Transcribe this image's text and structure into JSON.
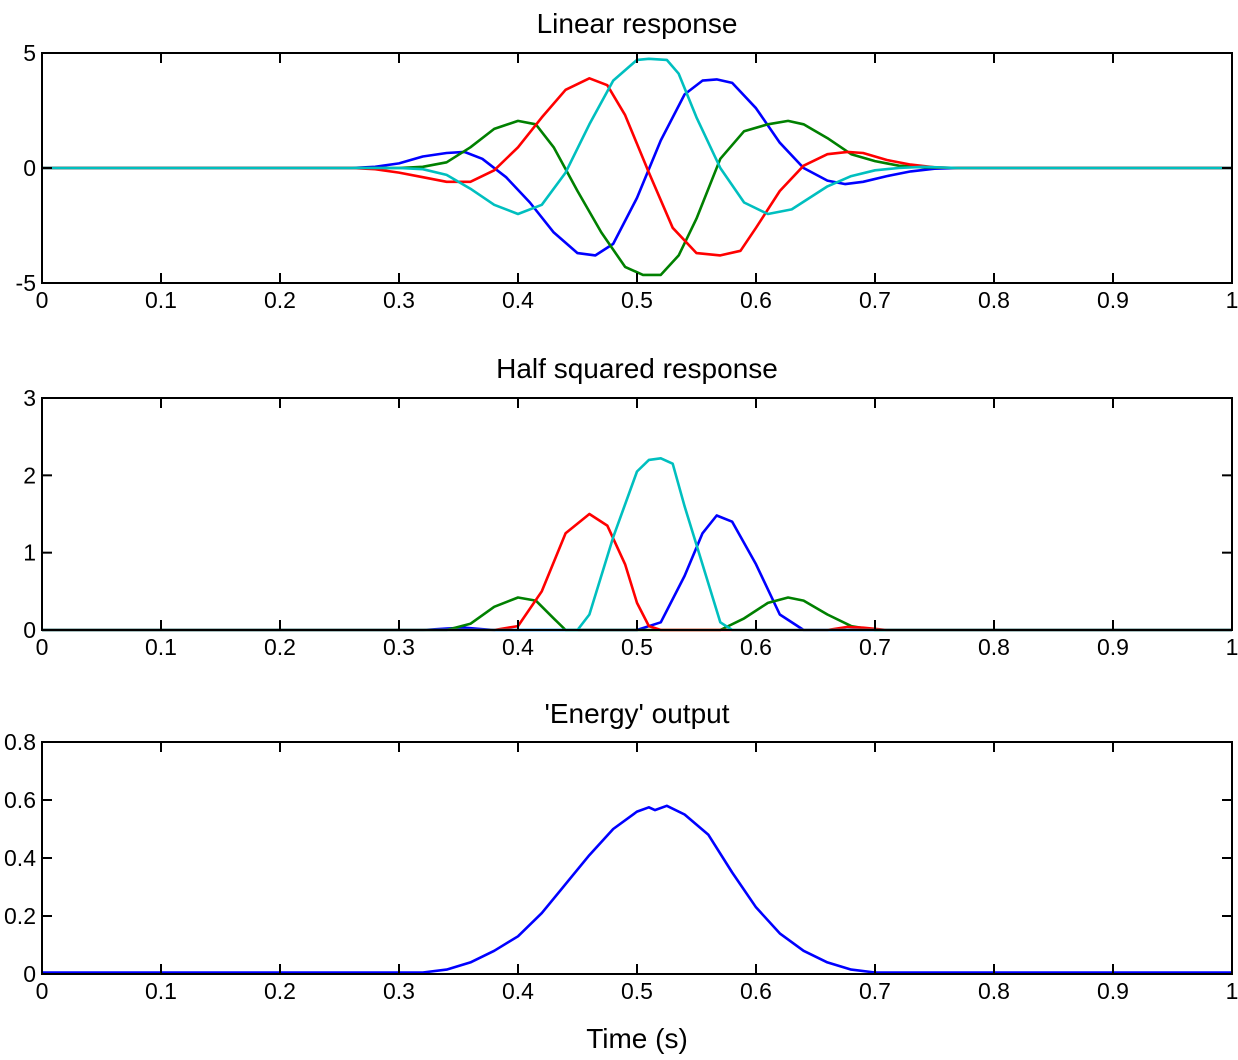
{
  "figure": {
    "xlabel": "Time (s)"
  },
  "chart_data": [
    {
      "type": "line",
      "title": "Linear response",
      "xlabel": "",
      "ylabel": "",
      "xlim": [
        0,
        1
      ],
      "ylim": [
        -5,
        5
      ],
      "xticks": [
        0,
        0.1,
        0.2,
        0.3,
        0.4,
        0.5,
        0.6,
        0.7,
        0.8,
        0.9,
        1
      ],
      "xtick_labels": [
        "0",
        "0.1",
        "0.2",
        "0.3",
        "0.4",
        "0.5",
        "0.6",
        "0.7",
        "0.8",
        "0.9",
        "1"
      ],
      "yticks": [
        -5,
        0,
        5
      ],
      "ytick_labels": [
        "-5",
        "0",
        "5"
      ],
      "grid": false,
      "series": [
        {
          "color": "#0000ff",
          "x": [
            0,
            0.26,
            0.28,
            0.3,
            0.32,
            0.34,
            0.355,
            0.37,
            0.39,
            0.41,
            0.43,
            0.45,
            0.465,
            0.48,
            0.5,
            0.52,
            0.54,
            0.555,
            0.567,
            0.58,
            0.6,
            0.62,
            0.64,
            0.66,
            0.675,
            0.69,
            0.71,
            0.73,
            0.75,
            0.77,
            1
          ],
          "y": [
            0,
            0,
            0.05,
            0.2,
            0.5,
            0.65,
            0.7,
            0.4,
            -0.4,
            -1.5,
            -2.8,
            -3.7,
            -3.8,
            -3.3,
            -1.3,
            1.2,
            3.2,
            3.8,
            3.85,
            3.7,
            2.6,
            1.1,
            0,
            -0.55,
            -0.7,
            -0.6,
            -0.35,
            -0.15,
            -0.03,
            0,
            0
          ]
        },
        {
          "color": "#008000",
          "x": [
            0,
            0.3,
            0.32,
            0.34,
            0.36,
            0.38,
            0.4,
            0.415,
            0.43,
            0.45,
            0.47,
            0.49,
            0.505,
            0.52,
            0.535,
            0.55,
            0.57,
            0.59,
            0.61,
            0.627,
            0.64,
            0.66,
            0.68,
            0.7,
            0.72,
            0.74,
            0.77,
            1
          ],
          "y": [
            0,
            0,
            0.05,
            0.25,
            0.9,
            1.7,
            2.05,
            1.9,
            0.9,
            -1.0,
            -2.8,
            -4.3,
            -4.65,
            -4.65,
            -3.8,
            -2.2,
            0.4,
            1.6,
            1.9,
            2.05,
            1.9,
            1.3,
            0.6,
            0.3,
            0.1,
            0.03,
            0,
            0
          ]
        },
        {
          "color": "#ff0000",
          "x": [
            0,
            0.26,
            0.28,
            0.3,
            0.32,
            0.34,
            0.36,
            0.38,
            0.4,
            0.42,
            0.44,
            0.46,
            0.475,
            0.49,
            0.51,
            0.53,
            0.55,
            0.57,
            0.587,
            0.6,
            0.62,
            0.64,
            0.66,
            0.677,
            0.69,
            0.71,
            0.73,
            0.75,
            0.77,
            1
          ],
          "y": [
            0,
            0,
            -0.05,
            -0.2,
            -0.4,
            -0.6,
            -0.6,
            -0.1,
            0.9,
            2.2,
            3.4,
            3.9,
            3.6,
            2.3,
            -0.2,
            -2.6,
            -3.7,
            -3.8,
            -3.6,
            -2.6,
            -1.0,
            0.1,
            0.6,
            0.7,
            0.65,
            0.35,
            0.15,
            0.03,
            0,
            0
          ]
        },
        {
          "color": "#00bfbf",
          "x": [
            0,
            0.3,
            0.32,
            0.34,
            0.36,
            0.38,
            0.4,
            0.42,
            0.44,
            0.46,
            0.48,
            0.5,
            0.51,
            0.525,
            0.535,
            0.55,
            0.57,
            0.59,
            0.61,
            0.63,
            0.66,
            0.68,
            0.7,
            0.72,
            0.74,
            0.77,
            1
          ],
          "y": [
            0,
            0,
            -0.05,
            -0.3,
            -0.9,
            -1.6,
            -2.0,
            -1.6,
            -0.2,
            1.9,
            3.8,
            4.7,
            4.75,
            4.7,
            4.1,
            2.2,
            0,
            -1.5,
            -2.0,
            -1.8,
            -0.8,
            -0.35,
            -0.1,
            0,
            0.05,
            0,
            0
          ]
        }
      ]
    },
    {
      "type": "line",
      "title": "Half squared response",
      "xlabel": "",
      "ylabel": "",
      "xlim": [
        0,
        1
      ],
      "ylim": [
        0,
        3
      ],
      "xticks": [
        0,
        0.1,
        0.2,
        0.3,
        0.4,
        0.5,
        0.6,
        0.7,
        0.8,
        0.9,
        1
      ],
      "xtick_labels": [
        "0",
        "0.1",
        "0.2",
        "0.3",
        "0.4",
        "0.5",
        "0.6",
        "0.7",
        "0.8",
        "0.9",
        "1"
      ],
      "yticks": [
        0,
        1,
        2,
        3
      ],
      "ytick_labels": [
        "0",
        "1",
        "2",
        "3"
      ],
      "grid": false,
      "series": [
        {
          "color": "#0000ff",
          "x": [
            0,
            0.32,
            0.34,
            0.355,
            0.37,
            0.38,
            0.5,
            0.52,
            0.54,
            0.555,
            0.567,
            0.58,
            0.6,
            0.62,
            0.64,
            0.66,
            0.68,
            1
          ],
          "y": [
            0,
            0,
            0.02,
            0.03,
            0.01,
            0,
            0,
            0.1,
            0.7,
            1.25,
            1.48,
            1.4,
            0.85,
            0.2,
            0,
            0,
            0,
            0
          ]
        },
        {
          "color": "#008000",
          "x": [
            0,
            0.34,
            0.36,
            0.38,
            0.4,
            0.415,
            0.43,
            0.44,
            0.57,
            0.59,
            0.61,
            0.627,
            0.64,
            0.66,
            0.68,
            0.7,
            1
          ],
          "y": [
            0,
            0,
            0.08,
            0.3,
            0.42,
            0.38,
            0.15,
            0,
            0,
            0.15,
            0.35,
            0.42,
            0.38,
            0.2,
            0.05,
            0,
            0
          ]
        },
        {
          "color": "#ff0000",
          "x": [
            0,
            0.38,
            0.4,
            0.42,
            0.44,
            0.46,
            0.475,
            0.49,
            0.5,
            0.51,
            0.52,
            0.66,
            0.677,
            0.69,
            0.71,
            1
          ],
          "y": [
            0,
            0,
            0.05,
            0.5,
            1.25,
            1.5,
            1.35,
            0.85,
            0.35,
            0.05,
            0,
            0,
            0.04,
            0.03,
            0,
            0
          ]
        },
        {
          "color": "#00bfbf",
          "x": [
            0,
            0.44,
            0.45,
            0.46,
            0.48,
            0.5,
            0.51,
            0.52,
            0.53,
            0.54,
            0.55,
            0.57,
            0.58,
            0.59,
            0.61,
            1
          ],
          "y": [
            0,
            0,
            0,
            0.2,
            1.2,
            2.05,
            2.2,
            2.22,
            2.15,
            1.6,
            1.1,
            0.1,
            0,
            0,
            0,
            0
          ]
        }
      ]
    },
    {
      "type": "line",
      "title": "'Energy' output",
      "xlabel": "Time (s)",
      "ylabel": "",
      "xlim": [
        0,
        1
      ],
      "ylim": [
        0,
        0.8
      ],
      "xticks": [
        0,
        0.1,
        0.2,
        0.3,
        0.4,
        0.5,
        0.6,
        0.7,
        0.8,
        0.9,
        1
      ],
      "xtick_labels": [
        "0",
        "0.1",
        "0.2",
        "0.3",
        "0.4",
        "0.5",
        "0.6",
        "0.7",
        "0.8",
        "0.9",
        "1"
      ],
      "yticks": [
        0,
        0.2,
        0.4,
        0.6,
        0.8
      ],
      "ytick_labels": [
        "0",
        "0.2",
        "0.4",
        "0.6",
        "0.8"
      ],
      "grid": false,
      "series": [
        {
          "color": "#0000ff",
          "x": [
            0,
            0.32,
            0.34,
            0.36,
            0.38,
            0.4,
            0.42,
            0.44,
            0.46,
            0.48,
            0.5,
            0.51,
            0.515,
            0.525,
            0.54,
            0.56,
            0.58,
            0.6,
            0.62,
            0.64,
            0.66,
            0.68,
            0.7,
            1
          ],
          "y": [
            0.005,
            0.005,
            0.015,
            0.04,
            0.08,
            0.13,
            0.21,
            0.31,
            0.41,
            0.5,
            0.56,
            0.575,
            0.565,
            0.58,
            0.55,
            0.48,
            0.35,
            0.23,
            0.14,
            0.08,
            0.04,
            0.015,
            0.005,
            0.005
          ]
        }
      ]
    }
  ]
}
